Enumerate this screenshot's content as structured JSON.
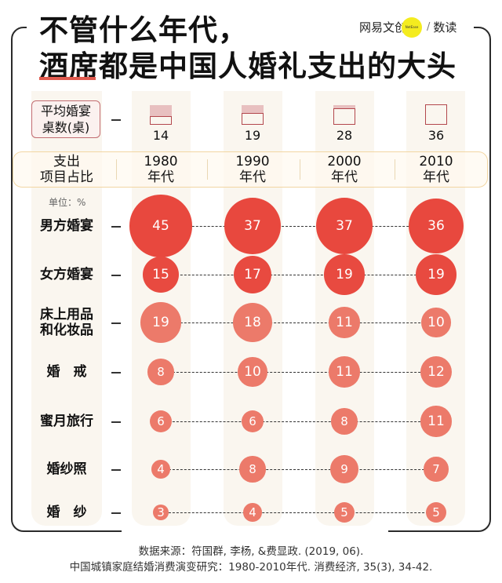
{
  "header": {
    "title_line1": "不管什么年代，",
    "title_line2": "酒席都是中国人婚礼支出的大头",
    "logo_text": "网易文创",
    "logo_badge": "NetEase",
    "logo_sep": "/",
    "logo_section": "数读"
  },
  "tables_row": {
    "label": "平均婚宴桌数(桌)",
    "label_line1": "平均婚宴",
    "label_line2": "桌数(桌)",
    "values": [
      "14",
      "19",
      "28",
      "36"
    ]
  },
  "band": {
    "label_line1": "支出",
    "label_line2": "项目占比",
    "decades": [
      {
        "year": "1980",
        "suffix": "年代"
      },
      {
        "year": "1990",
        "suffix": "年代"
      },
      {
        "year": "2000",
        "suffix": "年代"
      },
      {
        "year": "2010",
        "suffix": "年代"
      }
    ]
  },
  "unit_label": "单位：%",
  "rows": [
    {
      "label_line1": "男方婚宴",
      "label_line2": "",
      "values": [
        "45",
        "37",
        "37",
        "36"
      ]
    },
    {
      "label_line1": "女方婚宴",
      "label_line2": "",
      "values": [
        "15",
        "17",
        "19",
        "19"
      ]
    },
    {
      "label_line1": "床上用品",
      "label_line2": "和化妆品",
      "values": [
        "19",
        "18",
        "11",
        "10"
      ]
    },
    {
      "label_line1": "婚　戒",
      "label_line2": "",
      "values": [
        "8",
        "10",
        "11",
        "12"
      ]
    },
    {
      "label_line1": "蜜月旅行",
      "label_line2": "",
      "values": [
        "6",
        "6",
        "8",
        "11"
      ]
    },
    {
      "label_line1": "婚纱照",
      "label_line2": "",
      "values": [
        "4",
        "8",
        "9",
        "7"
      ]
    },
    {
      "label_line1": "婚　纱",
      "label_line2": "",
      "values": [
        "3",
        "4",
        "5",
        "5"
      ]
    }
  ],
  "source": {
    "line1": "数据来源：符国群, 李杨, &费显政. (2019, 06).",
    "line2": "中国城镇家庭结婚消费演变研究：1980-2010年代. 消费经济, 35(3), 34-42."
  },
  "colors": {
    "primary_red": "#e8483e",
    "light_red": "#ec7a6a",
    "stripe": "#faf6ef",
    "band_border": "#f2d6a2",
    "accent_underline": "#e05a4e"
  },
  "chart_data": {
    "type": "bubble-table",
    "title": "不管什么年代，酒席都是中国人婚礼支出的大头",
    "categories": [
      "1980年代",
      "1990年代",
      "2000年代",
      "2010年代"
    ],
    "unit": "%",
    "average_banquet_tables": [
      14,
      19,
      28,
      36
    ],
    "series": [
      {
        "name": "男方婚宴",
        "values": [
          45,
          37,
          37,
          36
        ]
      },
      {
        "name": "女方婚宴",
        "values": [
          15,
          17,
          19,
          19
        ]
      },
      {
        "name": "床上用品和化妆品",
        "values": [
          19,
          18,
          11,
          10
        ]
      },
      {
        "name": "婚戒",
        "values": [
          8,
          10,
          11,
          12
        ]
      },
      {
        "name": "蜜月旅行",
        "values": [
          6,
          6,
          8,
          11
        ]
      },
      {
        "name": "婚纱照",
        "values": [
          4,
          8,
          9,
          7
        ]
      },
      {
        "name": "婚纱",
        "values": [
          3,
          4,
          5,
          5
        ]
      }
    ],
    "source": "符国群, 李杨, &费显政. (2019, 06). 中国城镇家庭结婚消费演变研究：1980-2010年代. 消费经济, 35(3), 34-42."
  }
}
